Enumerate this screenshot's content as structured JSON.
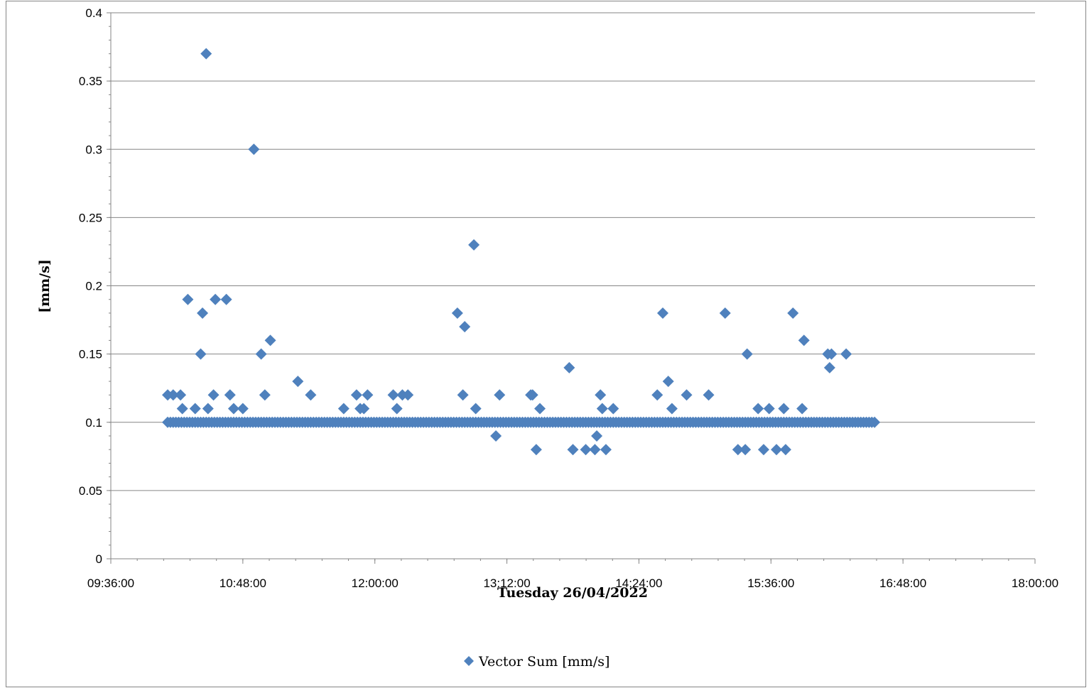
{
  "chart_data": {
    "type": "scatter",
    "title": "",
    "xlabel": "Tuesday 26/04/2022",
    "ylabel": "[mm/s]",
    "xlim": [
      "09:36:00",
      "18:00:00"
    ],
    "ylim": [
      0,
      0.4
    ],
    "x_tick_labels": [
      "09:36:00",
      "10:48:00",
      "12:00:00",
      "13:12:00",
      "14:24:00",
      "15:36:00",
      "16:48:00",
      "18:00:00"
    ],
    "y_tick_labels": [
      "0",
      "0.05",
      "0.1",
      "0.15",
      "0.2",
      "0.25",
      "0.3",
      "0.35",
      "0.4"
    ],
    "grid": "horizontal",
    "legend_position": "bottom",
    "colors": {
      "series": "#4F81BD",
      "grid": "#868686",
      "axis": "#868686"
    },
    "series": [
      {
        "name": "Vector Sum [mm/s]",
        "baseline_value": 0.1,
        "baseline_range": [
          "10:07:00",
          "16:33:00"
        ],
        "baseline_step_minutes": 1.5,
        "points": [
          [
            "10:07:00",
            0.12
          ],
          [
            "10:10:00",
            0.12
          ],
          [
            "10:14:00",
            0.12
          ],
          [
            "10:15:00",
            0.11
          ],
          [
            "10:18:00",
            0.19
          ],
          [
            "10:22:00",
            0.11
          ],
          [
            "10:25:00",
            0.15
          ],
          [
            "10:26:00",
            0.18
          ],
          [
            "10:28:00",
            0.37
          ],
          [
            "10:29:00",
            0.11
          ],
          [
            "10:32:00",
            0.12
          ],
          [
            "10:33:00",
            0.19
          ],
          [
            "10:39:00",
            0.19
          ],
          [
            "10:41:00",
            0.12
          ],
          [
            "10:43:00",
            0.11
          ],
          [
            "10:48:00",
            0.11
          ],
          [
            "10:54:00",
            0.3
          ],
          [
            "10:58:00",
            0.15
          ],
          [
            "11:00:00",
            0.12
          ],
          [
            "11:03:00",
            0.16
          ],
          [
            "11:18:00",
            0.13
          ],
          [
            "11:25:00",
            0.12
          ],
          [
            "11:43:00",
            0.11
          ],
          [
            "11:50:00",
            0.12
          ],
          [
            "11:52:00",
            0.11
          ],
          [
            "11:54:00",
            0.11
          ],
          [
            "11:56:00",
            0.12
          ],
          [
            "12:10:00",
            0.12
          ],
          [
            "12:12:00",
            0.11
          ],
          [
            "12:15:00",
            0.12
          ],
          [
            "12:18:00",
            0.12
          ],
          [
            "12:45:00",
            0.18
          ],
          [
            "12:48:00",
            0.12
          ],
          [
            "12:49:00",
            0.17
          ],
          [
            "12:54:00",
            0.23
          ],
          [
            "12:55:00",
            0.11
          ],
          [
            "13:06:00",
            0.09
          ],
          [
            "13:08:00",
            0.12
          ],
          [
            "13:25:00",
            0.12
          ],
          [
            "13:26:00",
            0.12
          ],
          [
            "13:28:00",
            0.08
          ],
          [
            "13:30:00",
            0.11
          ],
          [
            "13:46:00",
            0.14
          ],
          [
            "13:48:00",
            0.08
          ],
          [
            "13:55:00",
            0.08
          ],
          [
            "14:00:00",
            0.08
          ],
          [
            "14:01:00",
            0.09
          ],
          [
            "14:03:00",
            0.12
          ],
          [
            "14:04:00",
            0.11
          ],
          [
            "14:06:00",
            0.08
          ],
          [
            "14:10:00",
            0.11
          ],
          [
            "14:34:00",
            0.12
          ],
          [
            "14:37:00",
            0.18
          ],
          [
            "14:40:00",
            0.13
          ],
          [
            "14:42:00",
            0.11
          ],
          [
            "14:50:00",
            0.12
          ],
          [
            "15:02:00",
            0.12
          ],
          [
            "15:11:00",
            0.18
          ],
          [
            "15:18:00",
            0.08
          ],
          [
            "15:22:00",
            0.08
          ],
          [
            "15:23:00",
            0.15
          ],
          [
            "15:29:00",
            0.11
          ],
          [
            "15:32:00",
            0.08
          ],
          [
            "15:35:00",
            0.11
          ],
          [
            "15:39:00",
            0.08
          ],
          [
            "15:43:00",
            0.11
          ],
          [
            "15:44:00",
            0.08
          ],
          [
            "15:48:00",
            0.18
          ],
          [
            "15:53:00",
            0.11
          ],
          [
            "15:54:00",
            0.16
          ],
          [
            "16:07:00",
            0.15
          ],
          [
            "16:08:00",
            0.14
          ],
          [
            "16:09:00",
            0.15
          ],
          [
            "16:17:00",
            0.15
          ]
        ]
      }
    ]
  }
}
